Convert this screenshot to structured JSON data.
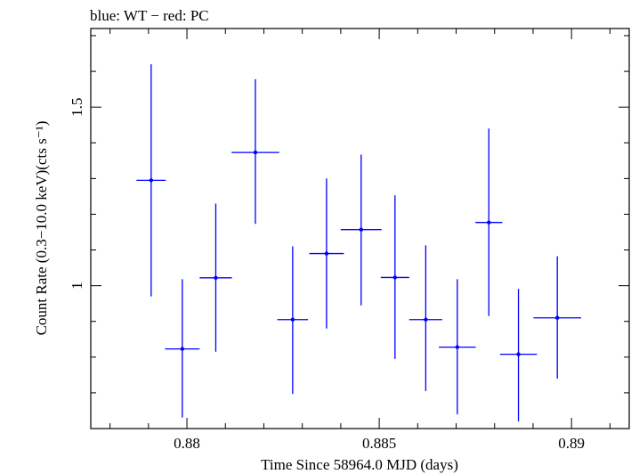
{
  "chart_data": {
    "type": "scatter",
    "title": "blue: WT − red: PC",
    "xlabel": "Time Since 58964.0 MJD (days)",
    "ylabel": "Count Rate (0.3−10.0 keV)(cts s⁻¹)",
    "xlim": [
      0.8775,
      0.8915
    ],
    "ylim": [
      0.6,
      1.72
    ],
    "xticks": [
      {
        "value": 0.88,
        "label": "0.88"
      },
      {
        "value": 0.885,
        "label": "0.885"
      },
      {
        "value": 0.89,
        "label": "0.89"
      }
    ],
    "yticks": [
      {
        "value": 1.0,
        "label": "1"
      },
      {
        "value": 1.5,
        "label": "1.5"
      }
    ],
    "grid": false,
    "series": [
      {
        "color": "#0000ff",
        "points": [
          {
            "x": 0.87907,
            "xerr": 0.00038,
            "y": 1.295,
            "yerr_lo": 0.325,
            "yerr_hi": 0.325
          },
          {
            "x": 0.87988,
            "xerr": 0.00045,
            "y": 0.823,
            "yerr_lo": 0.192,
            "yerr_hi": 0.195
          },
          {
            "x": 0.88075,
            "xerr": 0.00042,
            "y": 1.022,
            "yerr_lo": 0.207,
            "yerr_hi": 0.208
          },
          {
            "x": 0.88178,
            "xerr": 0.00062,
            "y": 1.373,
            "yerr_lo": 0.2,
            "yerr_hi": 0.205
          },
          {
            "x": 0.88275,
            "xerr": 0.0004,
            "y": 0.905,
            "yerr_lo": 0.208,
            "yerr_hi": 0.205
          },
          {
            "x": 0.88363,
            "xerr": 0.00045,
            "y": 1.09,
            "yerr_lo": 0.21,
            "yerr_hi": 0.21
          },
          {
            "x": 0.88453,
            "xerr": 0.00053,
            "y": 1.157,
            "yerr_lo": 0.212,
            "yerr_hi": 0.21
          },
          {
            "x": 0.88541,
            "xerr": 0.00037,
            "y": 1.023,
            "yerr_lo": 0.228,
            "yerr_hi": 0.23
          },
          {
            "x": 0.88621,
            "xerr": 0.00043,
            "y": 0.905,
            "yerr_lo": 0.2,
            "yerr_hi": 0.208
          },
          {
            "x": 0.88703,
            "xerr": 0.00048,
            "y": 0.828,
            "yerr_lo": 0.188,
            "yerr_hi": 0.19
          },
          {
            "x": 0.88785,
            "xerr": 0.00035,
            "y": 1.177,
            "yerr_lo": 0.262,
            "yerr_hi": 0.263
          },
          {
            "x": 0.88862,
            "xerr": 0.00048,
            "y": 0.808,
            "yerr_lo": 0.188,
            "yerr_hi": 0.183
          },
          {
            "x": 0.88963,
            "xerr": 0.00062,
            "y": 0.91,
            "yerr_lo": 0.17,
            "yerr_hi": 0.172
          }
        ]
      }
    ]
  }
}
